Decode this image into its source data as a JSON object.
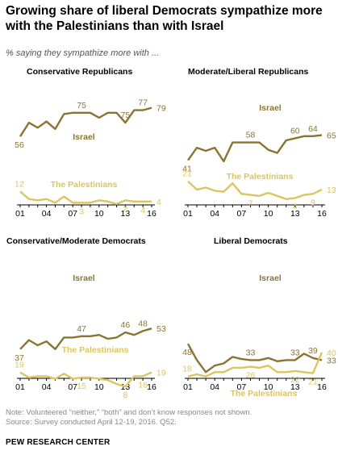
{
  "title": "Growing share of liberal Democrats sympathize more with the Palestinians than with Israel",
  "subtitle": "% saying they sympathize more with ...",
  "note": "Note: Volunteered “neither,” “both” and don’t know responses not shown.",
  "source": "Source: Survey conducted April 12-19, 2016. Q52.",
  "brand": "PEW RESEARCH CENTER",
  "colors": {
    "israel": "#8b7432",
    "palestinians": "#dcc461",
    "text": "#000000",
    "axis": "#000000"
  },
  "chart_data": [
    {
      "type": "line",
      "title": "Conservative Republicans",
      "x": [
        2001,
        2002,
        2003,
        2004,
        2005,
        2006,
        2007,
        2008,
        2009,
        2010,
        2011,
        2012,
        2013,
        2014,
        2015,
        2016
      ],
      "x_ticks": [
        "01",
        "04",
        "07",
        "10",
        "13",
        "16"
      ],
      "series": [
        {
          "name": "Israel",
          "values": [
            56,
            67,
            63,
            68,
            62,
            74,
            75,
            75,
            75,
            71,
            75,
            75,
            67,
            77,
            77,
            79
          ],
          "labels": [
            "56",
            "75",
            "75",
            "77",
            "79"
          ]
        },
        {
          "name": "The Palestinians",
          "values": [
            12,
            6,
            5,
            6,
            3,
            8,
            3,
            3,
            3,
            5,
            4,
            2,
            5,
            4,
            4,
            4
          ],
          "labels": [
            "12",
            "3",
            "2",
            "4",
            "4"
          ]
        }
      ]
    },
    {
      "type": "line",
      "title": "Moderate/Liberal Republicans",
      "x": [
        2001,
        2002,
        2003,
        2004,
        2005,
        2006,
        2007,
        2008,
        2009,
        2010,
        2011,
        2012,
        2013,
        2014,
        2015,
        2016
      ],
      "x_ticks": [
        "01",
        "04",
        "07",
        "10",
        "13",
        "16"
      ],
      "series": [
        {
          "name": "Israel",
          "values": [
            41,
            53,
            50,
            53,
            40,
            58,
            58,
            58,
            58,
            51,
            48,
            60,
            62,
            64,
            64,
            65
          ],
          "labels": [
            "41",
            "58",
            "60",
            "64",
            "65"
          ]
        },
        {
          "name": "The Palestinians",
          "values": [
            21,
            13,
            15,
            12,
            11,
            19,
            9,
            8,
            7,
            10,
            7,
            4,
            5,
            8,
            9,
            13
          ],
          "labels": [
            "21",
            "7",
            "4",
            "9",
            "13"
          ]
        }
      ]
    },
    {
      "type": "line",
      "title": "Conservative/Moderate Democrats",
      "x": [
        2001,
        2002,
        2003,
        2004,
        2005,
        2006,
        2007,
        2008,
        2009,
        2010,
        2011,
        2012,
        2013,
        2014,
        2015,
        2016
      ],
      "x_ticks": [
        "01",
        "04",
        "07",
        "10",
        "13",
        "16"
      ],
      "series": [
        {
          "name": "Israel",
          "values": [
            37,
            44,
            40,
            43,
            37,
            46,
            46,
            47,
            47,
            48,
            45,
            46,
            50,
            48,
            51,
            53
          ],
          "labels": [
            "37",
            "47",
            "46",
            "48",
            "53"
          ]
        },
        {
          "name": "The Palestinians",
          "values": [
            19,
            15,
            16,
            16,
            14,
            18,
            14,
            15,
            15,
            14,
            13,
            10,
            8,
            16,
            16,
            19
          ],
          "labels": [
            "19",
            "15",
            "8",
            "16",
            "19"
          ]
        }
      ]
    },
    {
      "type": "line",
      "title": "Liberal Democrats",
      "x": [
        2001,
        2002,
        2003,
        2004,
        2005,
        2006,
        2007,
        2008,
        2009,
        2010,
        2011,
        2012,
        2013,
        2014,
        2015,
        2016
      ],
      "x_ticks": [
        "01",
        "04",
        "07",
        "10",
        "13",
        "16"
      ],
      "series": [
        {
          "name": "Israel",
          "values": [
            48,
            33,
            22,
            28,
            30,
            36,
            34,
            33,
            33,
            35,
            32,
            33,
            33,
            39,
            35,
            33
          ],
          "labels": [
            "48",
            "33",
            "33",
            "39",
            "33"
          ]
        },
        {
          "name": "The Palestinians",
          "values": [
            18,
            20,
            18,
            22,
            22,
            26,
            26,
            27,
            26,
            28,
            22,
            22,
            23,
            22,
            21,
            40
          ],
          "labels": [
            "18",
            "26",
            "22",
            "21",
            "40"
          ]
        }
      ]
    }
  ]
}
